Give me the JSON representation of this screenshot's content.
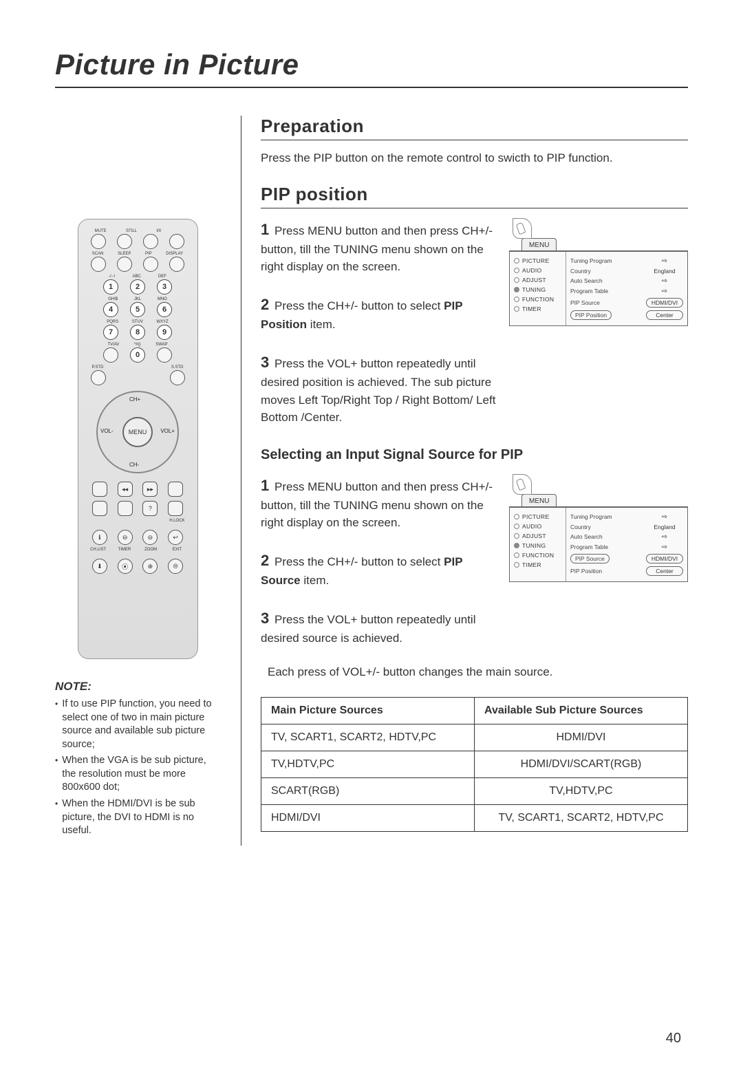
{
  "page": {
    "title": "Picture in Picture",
    "number": "40"
  },
  "preparation": {
    "heading": "Preparation",
    "text": "Press the PIP button on the remote control to swicth to PIP function."
  },
  "pip_position": {
    "heading": "PIP position",
    "step1": "Press MENU  button and then press CH+/- button, till the TUNING menu shown on the right display on the screen.",
    "step2_pre": "Press the CH+/- button to select ",
    "step2_bold": "PIP Position",
    "step2_post": " item.",
    "step3": "Press the VOL+ button repeatedly until desired position is achieved. The sub picture moves Left Top/Right Top / Right Bottom/ Left Bottom /Center."
  },
  "input_source": {
    "heading": "Selecting an Input Signal Source for PIP",
    "step1": "Press MENU  button and then press CH+/- button, till the TUNING menu shown on the right display on the screen.",
    "step2_pre": "Press the CH+/- button to select ",
    "step2_bold": "PIP Source",
    "step2_post": " item.",
    "step3": "Press the VOL+ button repeatedly until desired source is achieved.",
    "caption": "Each press of VOL+/- button changes the main source."
  },
  "osd": {
    "menu_label": "MENU",
    "left_items": [
      "PICTURE",
      "AUDIO",
      "ADJUST",
      "TUNING",
      "FUNCTION",
      "TIMER"
    ],
    "selected_index": 3,
    "rows": [
      {
        "k": "Tuning Program",
        "v": "⇨",
        "type": "arrow"
      },
      {
        "k": "Country",
        "v": "England",
        "type": "text"
      },
      {
        "k": "Auto Search",
        "v": "⇨",
        "type": "arrow"
      },
      {
        "k": "Program Table",
        "v": "⇨",
        "type": "arrow"
      },
      {
        "k": "PIP Source",
        "v": "HDMI/DVI",
        "type": "pill"
      },
      {
        "k": "PIP Position",
        "v": "Center",
        "type": "pill"
      }
    ],
    "highlight_a": 5,
    "highlight_b": 4
  },
  "sources_table": {
    "headers": [
      "Main Picture Sources",
      "Available Sub Picture Sources"
    ],
    "rows": [
      [
        "TV, SCART1, SCART2, HDTV,PC",
        "HDMI/DVI"
      ],
      [
        "TV,HDTV,PC",
        "HDMI/DVI/SCART(RGB)"
      ],
      [
        "SCART(RGB)",
        "TV,HDTV,PC"
      ],
      [
        "HDMI/DVI",
        "TV, SCART1, SCART2, HDTV,PC"
      ]
    ]
  },
  "remote": {
    "row1_labels": [
      "MUTE",
      "STILL",
      "I/II",
      ""
    ],
    "row2_labels": [
      "SCAN",
      "SLEEP",
      "PIP",
      "DISPLAY"
    ],
    "num_sup": [
      "-/--!",
      "ABC",
      "DEF",
      "GHI$",
      "JKL",
      "MNO",
      "PQRS",
      "STUV",
      "WXYZ"
    ],
    "row_after_nums_labels": [
      "TV/AV",
      "*#()",
      "SWAP"
    ],
    "row_pstd_labels": [
      "P.STD",
      "",
      "S.STD"
    ],
    "dpad": {
      "up": "CH+",
      "down": "CH-",
      "left": "VOL-",
      "right": "VOL+",
      "center": "MENU"
    },
    "bottom_labels1": [
      "",
      "",
      "",
      "H.LOCK"
    ],
    "bottom_labels2": [
      "CH.LIST",
      "TIMER",
      "ZOOM",
      "EXIT"
    ]
  },
  "note": {
    "heading": "NOTE:",
    "items": [
      "If to use PIP function, you need to select one of two in main picture source and available sub picture source;",
      "When the VGA is be sub picture, the resolution must be more 800x600 dot;",
      "When the HDMI/DVI is be sub picture, the DVI to HDMI is no useful."
    ]
  },
  "style": {
    "text_color": "#333333",
    "rule_color": "#333333",
    "osd_bg": "#f9f9f9",
    "remote_bg_top": "#e9e9e9",
    "remote_bg_bot": "#dcdcdc"
  }
}
